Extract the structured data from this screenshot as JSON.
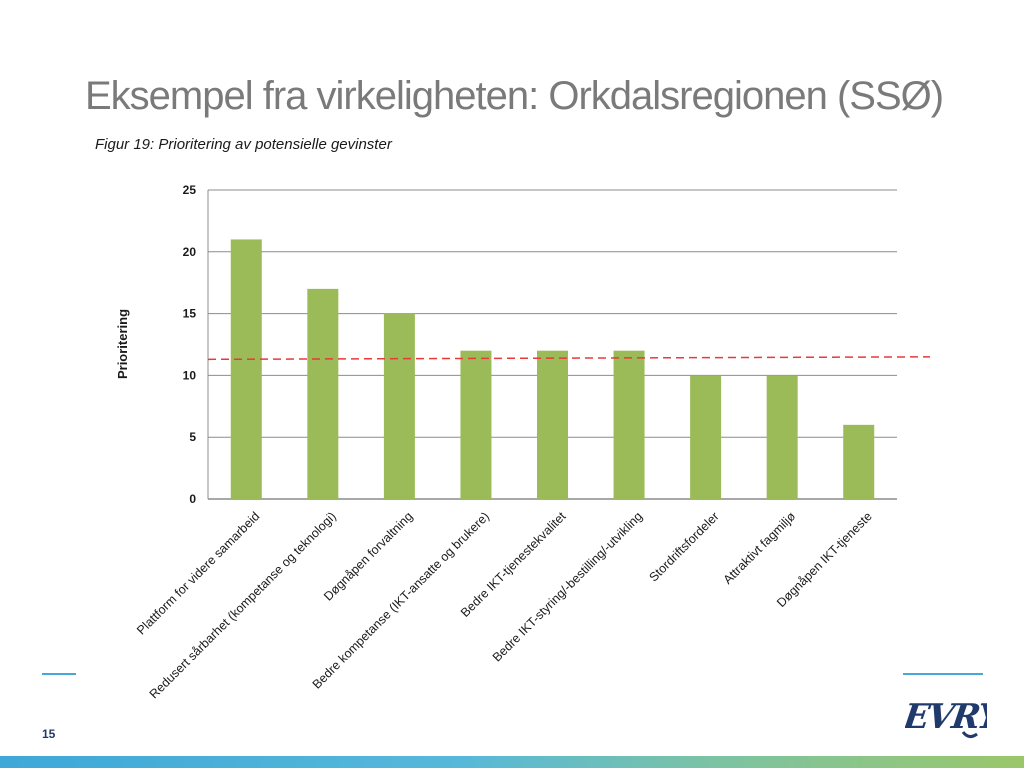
{
  "slide": {
    "title": "Eksempel fra virkeligheten: Orkdalsregionen (SSØ)",
    "page_number": "15",
    "logo_text": "EVRY"
  },
  "chart_data": {
    "type": "bar",
    "title": "Figur 19: Prioritering av potensielle gevinster",
    "xlabel": "",
    "ylabel": "Prioritering",
    "categories": [
      "Plattform for videre samarbeid",
      "Redusert sårbarhet (kompetanse og teknologi)",
      "Døgnåpen forvaltning",
      "Bedre kompetanse (IKT-ansatte og brukere)",
      "Bedre IKT-tjenestekvalitet",
      "Bedre IKT-styring/-bestilling/-utvikling",
      "Stordriftsfordeler",
      "Attraktivt fagmiljø",
      "Døgnåpen IKT-tjeneste"
    ],
    "values": [
      21,
      17,
      15,
      12,
      12,
      12,
      10,
      10,
      6
    ],
    "ylim": [
      0,
      25
    ],
    "yticks": [
      0,
      5,
      10,
      15,
      20,
      25
    ],
    "grid": true,
    "reference_line": {
      "style": "dashed",
      "y_start": 11.3,
      "y_end": 11.5
    },
    "colors": {
      "bar": "#9bbb59",
      "grid": "#8c8c8c",
      "reference_line": "#e8393b"
    }
  },
  "colors": {
    "title": "#7a7a7a",
    "accent_line": "#4aa6d6",
    "logo": "#1f3a6b"
  }
}
